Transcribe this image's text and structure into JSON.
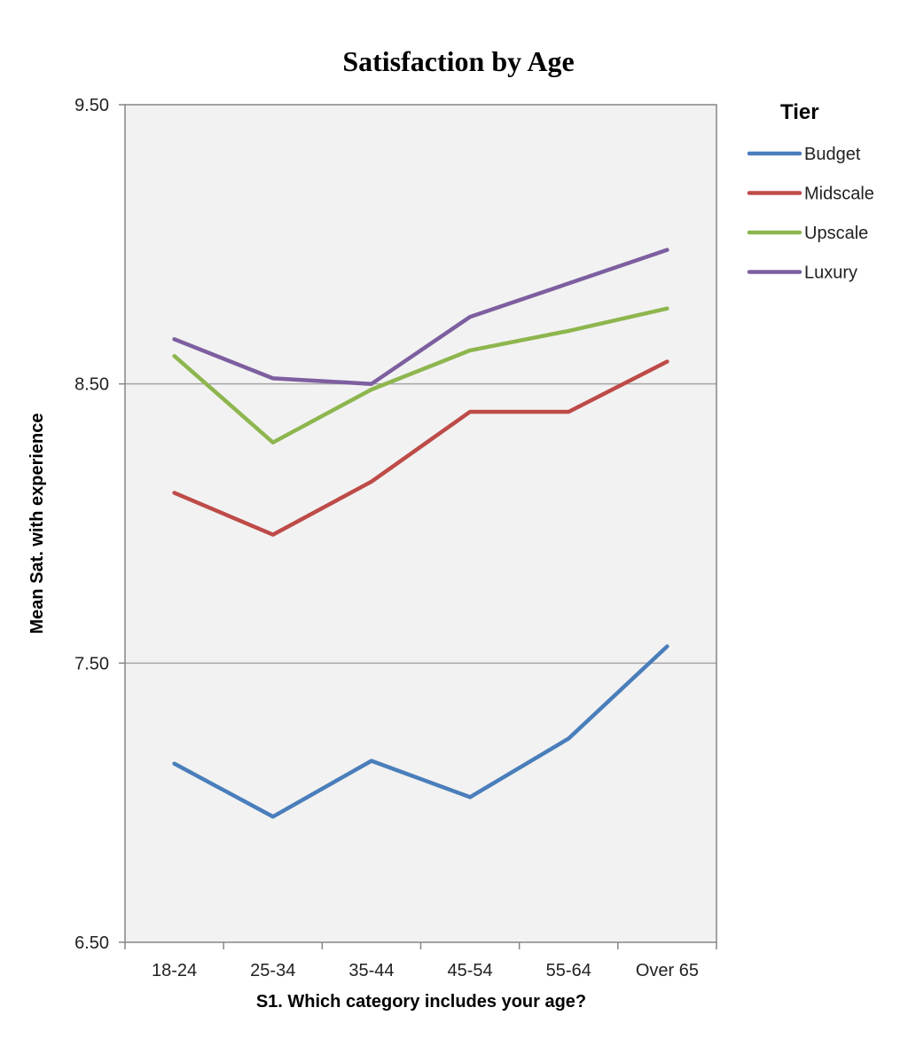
{
  "chart_data": {
    "type": "line",
    "title": "Satisfaction by Age",
    "xlabel": "S1. Which category includes your age?",
    "ylabel": "Mean Sat. with experience",
    "categories": [
      "18-24",
      "25-34",
      "35-44",
      "45-54",
      "55-64",
      "Over 65"
    ],
    "ylim": [
      6.5,
      9.5
    ],
    "yticks": [
      6.5,
      7.5,
      8.5,
      9.5
    ],
    "ytick_labels": [
      "6.50",
      "7.50",
      "8.50",
      "9.50"
    ],
    "grid": true,
    "legend": {
      "title": "Tier",
      "position": "right"
    },
    "series": [
      {
        "name": "Budget",
        "color": "#4a7ebb",
        "values": [
          7.14,
          6.95,
          7.15,
          7.02,
          7.23,
          7.56
        ]
      },
      {
        "name": "Midscale",
        "color": "#be4b48",
        "values": [
          8.11,
          7.96,
          8.15,
          8.4,
          8.4,
          8.58
        ]
      },
      {
        "name": "Upscale",
        "color": "#8db64e",
        "values": [
          8.6,
          8.29,
          8.48,
          8.62,
          8.69,
          8.77
        ]
      },
      {
        "name": "Luxury",
        "color": "#7d5fa0",
        "values": [
          8.66,
          8.52,
          8.5,
          8.74,
          8.86,
          8.98
        ]
      }
    ]
  }
}
